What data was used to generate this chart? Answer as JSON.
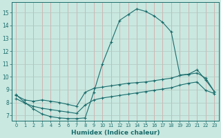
{
  "xlabel": "Humidex (Indice chaleur)",
  "xlim": [
    -0.5,
    23.5
  ],
  "ylim": [
    6.6,
    15.8
  ],
  "xticks": [
    0,
    1,
    2,
    3,
    4,
    5,
    6,
    7,
    8,
    9,
    10,
    11,
    12,
    13,
    14,
    15,
    16,
    17,
    18,
    19,
    20,
    21,
    22,
    23
  ],
  "yticks": [
    7,
    8,
    9,
    10,
    11,
    12,
    13,
    14,
    15
  ],
  "background_color": "#c8e8e0",
  "grid_color": "#b0c8c0",
  "line_color": "#1a6b6b",
  "curve1_x": [
    0,
    1,
    2,
    3,
    4,
    5,
    6,
    7,
    8,
    9,
    10,
    11,
    12,
    13,
    14,
    15,
    16,
    17,
    18,
    19,
    20,
    21,
    22,
    23
  ],
  "curve1_y": [
    8.6,
    8.0,
    7.5,
    7.1,
    6.9,
    6.8,
    6.75,
    6.75,
    6.8,
    8.8,
    11.0,
    12.7,
    14.4,
    14.85,
    15.3,
    15.1,
    14.75,
    14.25,
    13.5,
    10.15,
    10.2,
    10.55,
    9.75,
    8.85
  ],
  "curve2_x": [
    0,
    1,
    2,
    3,
    4,
    5,
    6,
    7,
    8,
    9,
    10,
    11,
    12,
    13,
    14,
    15,
    16,
    17,
    18,
    19,
    20,
    21,
    22,
    23
  ],
  "curve2_y": [
    8.55,
    8.2,
    8.1,
    8.2,
    8.1,
    8.0,
    7.85,
    7.7,
    8.8,
    9.1,
    9.2,
    9.3,
    9.4,
    9.5,
    9.55,
    9.6,
    9.7,
    9.8,
    9.9,
    10.1,
    10.2,
    10.3,
    9.9,
    8.85
  ],
  "curve3_x": [
    0,
    1,
    2,
    3,
    4,
    5,
    6,
    7,
    8,
    9,
    10,
    11,
    12,
    13,
    14,
    15,
    16,
    17,
    18,
    19,
    20,
    21,
    22,
    23
  ],
  "curve3_y": [
    8.3,
    7.95,
    7.7,
    7.55,
    7.45,
    7.35,
    7.25,
    7.15,
    7.8,
    8.2,
    8.35,
    8.45,
    8.55,
    8.65,
    8.75,
    8.85,
    8.95,
    9.05,
    9.15,
    9.35,
    9.5,
    9.6,
    8.95,
    8.7
  ]
}
